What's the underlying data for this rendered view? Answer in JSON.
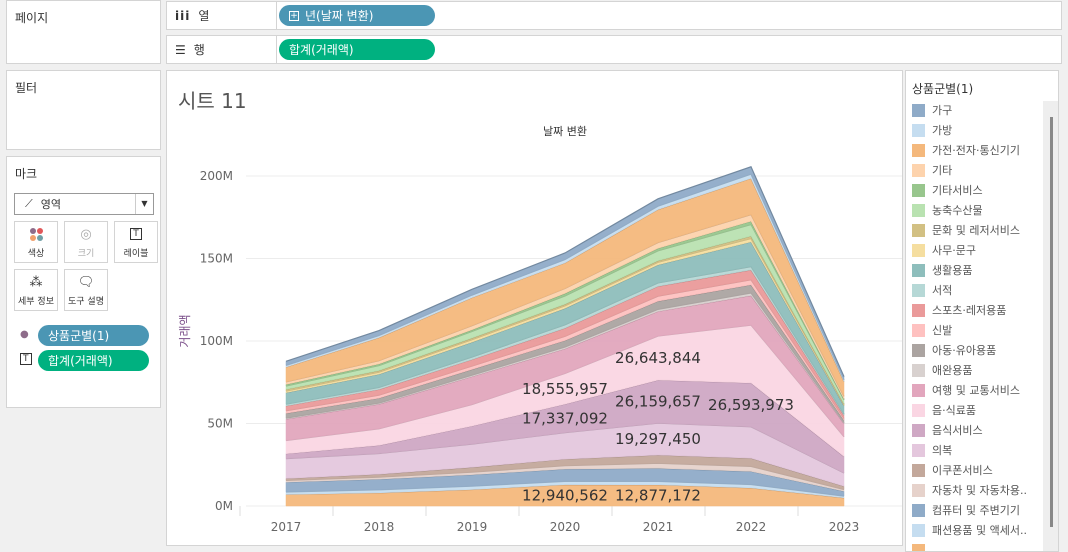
{
  "pages": {
    "title": "페이지"
  },
  "filters": {
    "title": "필터"
  },
  "columns": {
    "label": "열",
    "pill": "년(날짜 변환)"
  },
  "rows": {
    "label": "행",
    "pill": "합계(거래액)"
  },
  "marks": {
    "title": "마크",
    "type": "영역",
    "buttons": [
      "색상",
      "크기",
      "레이블",
      "세부 정보",
      "도구 설명"
    ],
    "color_pill": "상품군별(1)",
    "label_pill": "합계(거래액)"
  },
  "legend": {
    "title": "상품군별(1)",
    "items": [
      {
        "name": "가구",
        "color": "#8fabc8"
      },
      {
        "name": "가방",
        "color": "#c5ddf0"
      },
      {
        "name": "가전·전자·통신기기",
        "color": "#f4b87c"
      },
      {
        "name": "기타",
        "color": "#fdd3ad"
      },
      {
        "name": "기타서비스",
        "color": "#98c68d"
      },
      {
        "name": "농축수산물",
        "color": "#b9e2b1"
      },
      {
        "name": "문화 및 레저서비스",
        "color": "#d2c083"
      },
      {
        "name": "사무·문구",
        "color": "#f5dea0"
      },
      {
        "name": "생활용품",
        "color": "#8ebebc"
      },
      {
        "name": "서적",
        "color": "#b6d8d6"
      },
      {
        "name": "스포츠·레저용품",
        "color": "#ea9a9a"
      },
      {
        "name": "신발",
        "color": "#fec1c0"
      },
      {
        "name": "아동·유아용품",
        "color": "#aba4a1"
      },
      {
        "name": "애완용품",
        "color": "#d8d1cf"
      },
      {
        "name": "여행 및 교통서비스",
        "color": "#e2a6bd"
      },
      {
        "name": "음·식료품",
        "color": "#fad6e3"
      },
      {
        "name": "음식서비스",
        "color": "#cfa8c4"
      },
      {
        "name": "의복",
        "color": "#e4c7dd"
      },
      {
        "name": "이쿠폰서비스",
        "color": "#c3a89b"
      },
      {
        "name": "자동차 및 자동차용..",
        "color": "#e6d2cb"
      },
      {
        "name": "컴퓨터 및 주변기기",
        "color": "#8fabc8"
      },
      {
        "name": "패션용품 및 액세서..",
        "color": "#c5ddf0"
      },
      {
        "name": "",
        "color": "#f4b87c"
      }
    ]
  },
  "chart_data": {
    "type": "area",
    "title": "시트 11",
    "header": "날짜 변환",
    "ylabel": "거래액",
    "xlabel": "",
    "x": [
      "2017",
      "2018",
      "2019",
      "2020",
      "2021",
      "2022",
      "2023"
    ],
    "ylim": [
      0,
      220000000
    ],
    "yticks": [
      "0M",
      "50M",
      "100M",
      "150M",
      "200M"
    ],
    "ytick_values": [
      0,
      50,
      100,
      150,
      200
    ],
    "unit": "M",
    "grid": true,
    "series_bottom_to_top": [
      {
        "legend_index": 22,
        "values": [
          7,
          8,
          10,
          12.94,
          12.88,
          11,
          5
        ]
      },
      {
        "legend_index": 21,
        "values": [
          1.5,
          1.8,
          2,
          2,
          2,
          2,
          1
        ]
      },
      {
        "legend_index": 20,
        "values": [
          6,
          6.5,
          7,
          7.5,
          8,
          8,
          3
        ]
      },
      {
        "legend_index": 19,
        "values": [
          1,
          1.2,
          1.5,
          2,
          3,
          3,
          1
        ]
      },
      {
        "legend_index": 18,
        "values": [
          1.2,
          1.8,
          3,
          4,
          5,
          5,
          2
        ]
      },
      {
        "legend_index": 17,
        "values": [
          12,
          12.5,
          14,
          16,
          19.3,
          19,
          8
        ]
      },
      {
        "legend_index": 16,
        "values": [
          3,
          5,
          11,
          17.34,
          26.16,
          26.59,
          10
        ]
      },
      {
        "legend_index": 15,
        "values": [
          8,
          10,
          13,
          18.56,
          26.64,
          35,
          12
        ]
      },
      {
        "legend_index": 14,
        "values": [
          13,
          15,
          17,
          15,
          15,
          18,
          8
        ]
      },
      {
        "legend_index": 13,
        "values": [
          0.5,
          0.6,
          0.8,
          1,
          1.2,
          1.5,
          0.5
        ]
      },
      {
        "legend_index": 12,
        "values": [
          3,
          3,
          3.5,
          4,
          5,
          5,
          1.5
        ]
      },
      {
        "legend_index": 11,
        "values": [
          1.5,
          1.8,
          2,
          2.5,
          3,
          3,
          1
        ]
      },
      {
        "legend_index": 10,
        "values": [
          3,
          3.5,
          4,
          5,
          6,
          6,
          2
        ]
      },
      {
        "legend_index": 9,
        "values": [
          1,
          1.2,
          1.5,
          2,
          2,
          2,
          0.8
        ]
      },
      {
        "legend_index": 8,
        "values": [
          7,
          8,
          9,
          10,
          11,
          15,
          5
        ]
      },
      {
        "legend_index": 7,
        "values": [
          1,
          1.2,
          1.5,
          1.5,
          1.5,
          2,
          0.6
        ]
      },
      {
        "legend_index": 6,
        "values": [
          1,
          1,
          1,
          1,
          1,
          1.5,
          0.5
        ]
      },
      {
        "legend_index": 5,
        "values": [
          2,
          3,
          4,
          5,
          6,
          7,
          2.5
        ]
      },
      {
        "legend_index": 4,
        "values": [
          1,
          1,
          1,
          1.5,
          1.5,
          2,
          0.5
        ]
      },
      {
        "legend_index": 3,
        "values": [
          1.5,
          2,
          2.5,
          3,
          3.5,
          4,
          1.5
        ]
      },
      {
        "legend_index": 2,
        "values": [
          9,
          14,
          17,
          15.5,
          20,
          22,
          9
        ]
      },
      {
        "legend_index": 1,
        "values": [
          1,
          1.2,
          1.5,
          2,
          2,
          2.5,
          1
        ]
      },
      {
        "legend_index": 0,
        "values": [
          2.5,
          3,
          3.5,
          4,
          4.5,
          4.5,
          2
        ]
      }
    ],
    "labels": [
      {
        "series": 0,
        "x": 3,
        "text": "12,940,562"
      },
      {
        "series": 0,
        "x": 4,
        "text": "12,877,172"
      },
      {
        "series": 6,
        "x": 3,
        "text": "17,337,092"
      },
      {
        "series": 7,
        "x": 3,
        "text": "18,555,957"
      },
      {
        "series": 6,
        "x": 4,
        "text": "26,159,657"
      },
      {
        "series": 7,
        "x": 4,
        "text": "26,643,844"
      },
      {
        "series": 5,
        "x": 4,
        "text": "19,297,450"
      },
      {
        "series": 6,
        "x": 5,
        "text": "26,593,973"
      }
    ]
  }
}
